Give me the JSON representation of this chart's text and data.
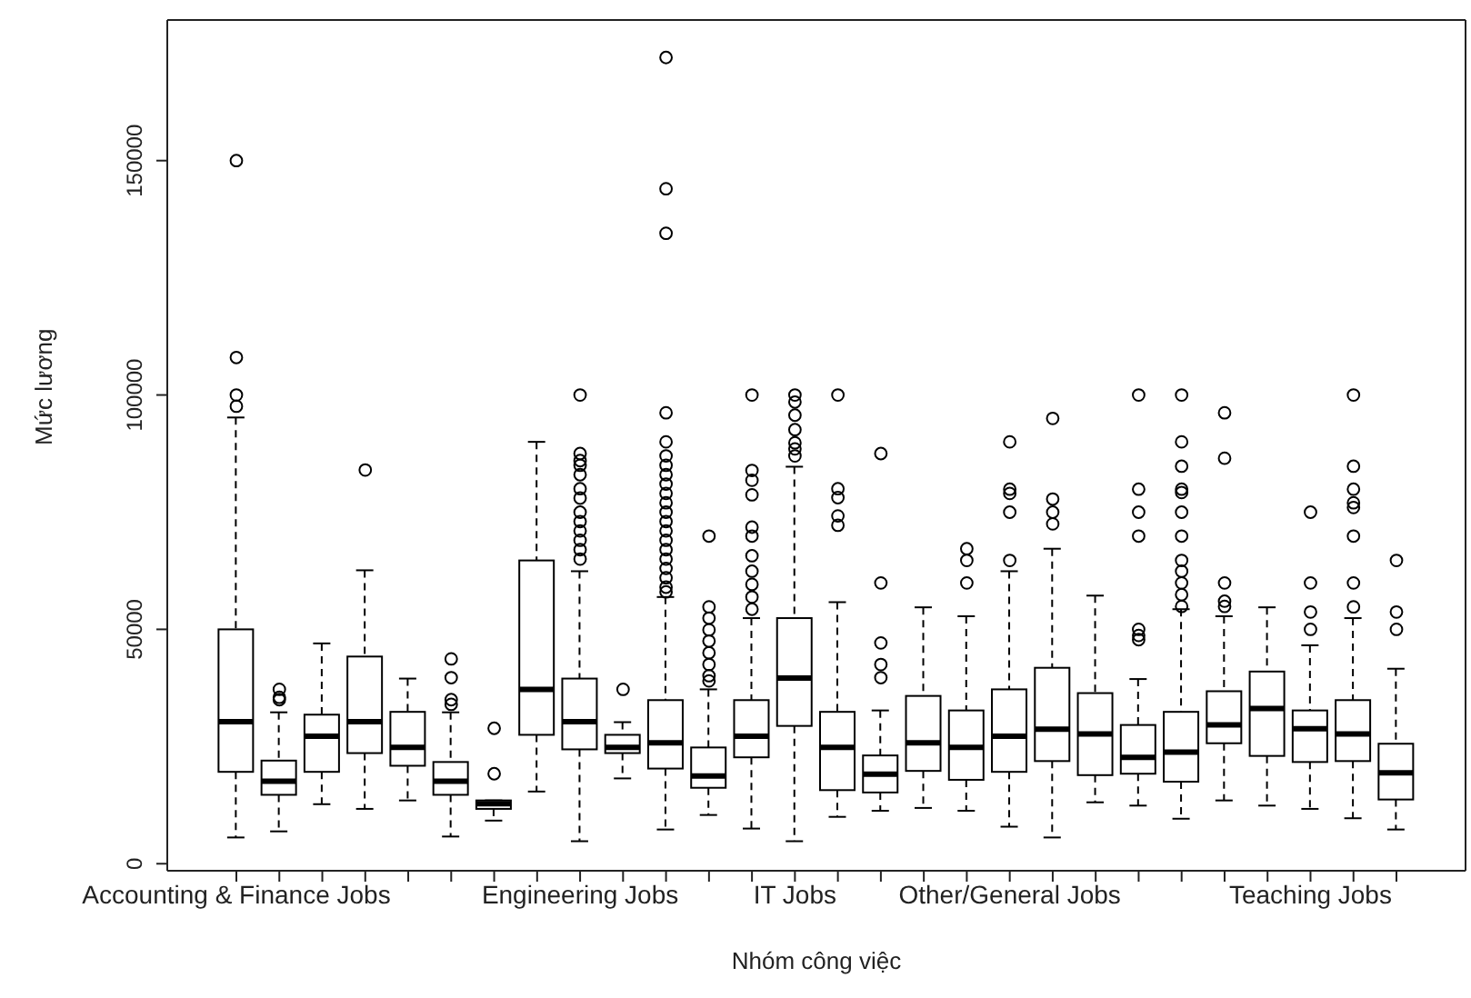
{
  "chart_data": {
    "type": "box",
    "xlabel": "Nhóm công việc",
    "ylabel": "Mức lương",
    "categories": [
      "Accounting & Finance Jobs",
      null,
      null,
      null,
      null,
      null,
      null,
      null,
      "Engineering Jobs",
      null,
      null,
      null,
      null,
      "IT Jobs",
      null,
      null,
      null,
      null,
      "Other/General Jobs",
      null,
      null,
      null,
      null,
      null,
      null,
      "Teaching Jobs",
      null,
      null
    ],
    "ylim": [
      -1500,
      180000
    ],
    "yticks": [
      0,
      50000,
      100000,
      150000
    ],
    "boxes": [
      {
        "low": 5600,
        "q1": 19600,
        "median": 30300,
        "q3": 50000,
        "high": 95200,
        "outliers": [
          97600,
          100000,
          108000,
          150000
        ]
      },
      {
        "low": 6900,
        "q1": 14700,
        "median": 17600,
        "q3": 22000,
        "high": 32300,
        "outliers": [
          35000,
          35500,
          37200
        ]
      },
      {
        "low": 12700,
        "q1": 19600,
        "median": 27200,
        "q3": 31800,
        "high": 47000
      },
      {
        "low": 11700,
        "q1": 23600,
        "median": 30300,
        "q3": 44200,
        "high": 62600,
        "outliers": [
          84000
        ]
      },
      {
        "low": 13500,
        "q1": 20900,
        "median": 24800,
        "q3": 32400,
        "high": 39500
      },
      {
        "low": 5800,
        "q1": 14700,
        "median": 17600,
        "q3": 21700,
        "high": 32300,
        "outliers": [
          34000,
          35000,
          39700,
          43700
        ]
      },
      {
        "low": 9200,
        "q1": 11700,
        "median": 12800,
        "q3": 13500,
        "high": 13500,
        "outliers": [
          19200,
          28900
        ]
      },
      {
        "low": 15400,
        "q1": 27500,
        "median": 37200,
        "q3": 64700,
        "high": 90000
      },
      {
        "low": 4800,
        "q1": 24400,
        "median": 30300,
        "q3": 39500,
        "high": 62400,
        "outliers": [
          65000,
          67000,
          69000,
          71000,
          73000,
          75000,
          78000,
          80000,
          83000,
          85000,
          86000,
          87500,
          100000
        ]
      },
      {
        "low": 18200,
        "q1": 23600,
        "median": 24800,
        "q3": 27500,
        "high": 30200,
        "outliers": [
          37200
        ]
      },
      {
        "low": 7300,
        "q1": 20300,
        "median": 25800,
        "q3": 34900,
        "high": 56900,
        "outliers": [
          58000,
          59000,
          61000,
          63000,
          65000,
          67000,
          69000,
          71000,
          73000,
          75000,
          77000,
          79000,
          81000,
          83000,
          85000,
          87000,
          90000,
          96200,
          134500,
          144000,
          172000
        ]
      },
      {
        "low": 10400,
        "q1": 16200,
        "median": 18700,
        "q3": 24800,
        "high": 37200,
        "outliers": [
          39000,
          40100,
          42500,
          45000,
          47500,
          49900,
          52400,
          54800,
          69900
        ]
      },
      {
        "low": 7500,
        "q1": 22700,
        "median": 27200,
        "q3": 34900,
        "high": 52400,
        "outliers": [
          54300,
          56900,
          59600,
          62400,
          65700,
          69900,
          71800,
          78700,
          81800,
          83900,
          100000
        ]
      },
      {
        "low": 4800,
        "q1": 29400,
        "median": 39600,
        "q3": 52400,
        "high": 84700,
        "outliers": [
          87000,
          88500,
          89800,
          92600,
          95700,
          98500,
          100000
        ]
      },
      {
        "low": 10000,
        "q1": 15700,
        "median": 24800,
        "q3": 32400,
        "high": 55800,
        "outliers": [
          72200,
          74200,
          78100,
          80000,
          100000
        ]
      },
      {
        "low": 11300,
        "q1": 15200,
        "median": 19100,
        "q3": 23100,
        "high": 32700,
        "outliers": [
          39700,
          42500,
          47100,
          59900,
          87500
        ]
      },
      {
        "low": 11900,
        "q1": 19800,
        "median": 25800,
        "q3": 35800,
        "high": 54700
      },
      {
        "low": 11300,
        "q1": 17900,
        "median": 24800,
        "q3": 32700,
        "high": 52800,
        "outliers": [
          59900,
          64700,
          67200
        ]
      },
      {
        "low": 7900,
        "q1": 19600,
        "median": 27200,
        "q3": 37200,
        "high": 62400,
        "outliers": [
          64700,
          75000,
          79000,
          79900,
          90000
        ]
      },
      {
        "low": 5600,
        "q1": 21900,
        "median": 28700,
        "q3": 41800,
        "high": 67200,
        "outliers": [
          72500,
          75000,
          77800,
          95000
        ]
      },
      {
        "low": 13100,
        "q1": 18900,
        "median": 27700,
        "q3": 36400,
        "high": 57200
      },
      {
        "low": 12400,
        "q1": 19200,
        "median": 22700,
        "q3": 29600,
        "high": 39400,
        "outliers": [
          47800,
          48700,
          50000,
          69900,
          75000,
          79900,
          100000
        ]
      },
      {
        "low": 9600,
        "q1": 17500,
        "median": 23800,
        "q3": 32400,
        "high": 54300,
        "outliers": [
          54900,
          57400,
          59900,
          62400,
          64700,
          69900,
          75000,
          79200,
          79900,
          84800,
          90000,
          100000
        ]
      },
      {
        "low": 13500,
        "q1": 25700,
        "median": 29600,
        "q3": 36800,
        "high": 52800,
        "outliers": [
          54900,
          56000,
          59900,
          86500,
          96200
        ]
      },
      {
        "low": 12400,
        "q1": 23000,
        "median": 33100,
        "q3": 41000,
        "high": 54700
      },
      {
        "low": 11700,
        "q1": 21700,
        "median": 28800,
        "q3": 32700,
        "high": 46600,
        "outliers": [
          50000,
          53700,
          59900,
          75000
        ]
      },
      {
        "low": 9700,
        "q1": 21900,
        "median": 27700,
        "q3": 34900,
        "high": 52400,
        "outliers": [
          54800,
          59900,
          69900,
          76000,
          77000,
          79900,
          84800,
          100000
        ]
      },
      {
        "low": 7300,
        "q1": 13700,
        "median": 19400,
        "q3": 25600,
        "high": 41600,
        "outliers": [
          50000,
          53700,
          64700
        ]
      }
    ]
  }
}
